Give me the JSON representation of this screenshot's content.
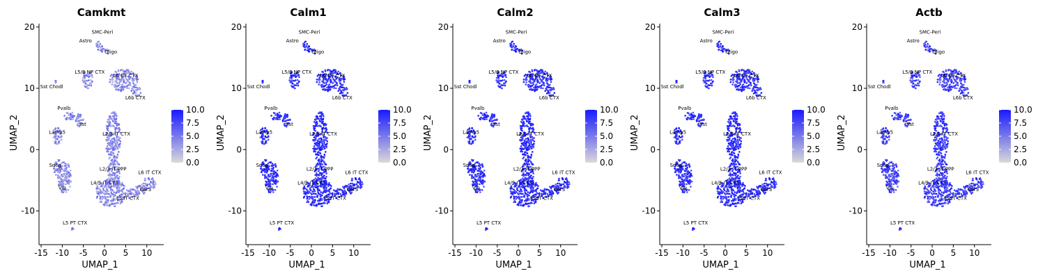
{
  "chart_data": {
    "type": "scatter",
    "description_note": "",
    "shared": {
      "xlabel": "UMAP_1",
      "ylabel": "UMAP_2",
      "xlim": [
        -15.5,
        14
      ],
      "ylim": [
        -15.5,
        21
      ],
      "x_ticks": [
        -15,
        -10,
        -5,
        0,
        5,
        10
      ],
      "x_tick_labels": [
        "-15",
        "-10",
        "-5",
        "0",
        "5",
        "10"
      ],
      "y_ticks": [
        -10,
        0,
        10,
        20
      ],
      "y_tick_labels": [
        "-10",
        "0",
        "10",
        "20"
      ],
      "colorbar": {
        "range": [
          0,
          10
        ],
        "ticks": [
          10,
          7.5,
          5,
          2.5,
          0
        ],
        "tick_labels": [
          "10.0",
          "7.5",
          "5.0",
          "2.5",
          "0.0"
        ],
        "low_color": "#d9d9d9",
        "high_color": "#1a1aff"
      },
      "grid": false,
      "legend_placement": "right"
    },
    "clusters": [
      {
        "name": "SMC-Peri",
        "x": -0.5,
        "y": 16.5,
        "label_x": -0.5,
        "label_y": 18.9,
        "rx": 0.6,
        "ry": 0.7
      },
      {
        "name": "Astro",
        "x": -1.5,
        "y": 17.0,
        "label_x": -4.5,
        "label_y": 17.5,
        "rx": 0.5,
        "ry": 0.9
      },
      {
        "name": "Oligo",
        "x": 0.5,
        "y": 16.0,
        "label_x": 1.5,
        "label_y": 15.7,
        "rx": 0.6,
        "ry": 0.5
      },
      {
        "name": "L5/6 NP CTX",
        "x": -4.0,
        "y": 11.5,
        "label_x": -3.5,
        "label_y": 12.4,
        "rx": 1.2,
        "ry": 1.6
      },
      {
        "name": "L6 CT CTX",
        "x": 4.5,
        "y": 11.3,
        "label_x": 5.0,
        "label_y": 11.8,
        "rx": 3.4,
        "ry": 1.8
      },
      {
        "name": "L6b CTX",
        "x": 7.5,
        "y": 9.5,
        "label_x": 7.3,
        "label_y": 8.2,
        "rx": 1.2,
        "ry": 0.8
      },
      {
        "name": "Sst Chodl",
        "x": -11.5,
        "y": 11.0,
        "label_x": -12.5,
        "label_y": 10.0,
        "rx": 0.25,
        "ry": 0.25
      },
      {
        "name": "Pvalb",
        "x": -8.3,
        "y": 5.5,
        "label_x": -9.6,
        "label_y": 6.5,
        "rx": 1.2,
        "ry": 0.8
      },
      {
        "name": "Sst",
        "x": -6.0,
        "y": 4.8,
        "label_x": -5.2,
        "label_y": 3.9,
        "rx": 1.0,
        "ry": 1.1
      },
      {
        "name": "Lamp5",
        "x": -11.2,
        "y": 2.2,
        "label_x": -11.2,
        "label_y": 2.6,
        "rx": 1.2,
        "ry": 1.4
      },
      {
        "name": "Sncg",
        "x": -11.0,
        "y": -3.0,
        "label_x": -11.7,
        "label_y": -2.8,
        "rx": 1.0,
        "ry": 1.5
      },
      {
        "name": "Vip",
        "x": -9.5,
        "y": -4.5,
        "label_x": -10.0,
        "label_y": -6.5,
        "rx": 1.7,
        "ry": 2.6
      },
      {
        "name": "L2/3 IT CTX",
        "x": 2.0,
        "y": 2.0,
        "label_x": 2.8,
        "label_y": 2.3,
        "rx": 1.8,
        "ry": 4.2
      },
      {
        "name": "L2/3 IT PPP",
        "x": 2.2,
        "y": -3.5,
        "label_x": 2.0,
        "label_y": -3.4,
        "rx": 1.5,
        "ry": 2.0
      },
      {
        "name": "L4/5 IT CTX",
        "x": 1.5,
        "y": -7.0,
        "label_x": 0.0,
        "label_y": -5.7,
        "rx": 3.6,
        "ry": 2.4
      },
      {
        "name": "L6 IT CTX",
        "x": 10.5,
        "y": -5.5,
        "label_x": 10.7,
        "label_y": -4.0,
        "rx": 1.8,
        "ry": 1.0
      },
      {
        "name": "Car3",
        "x": 8.5,
        "y": -6.5,
        "label_x": 9.7,
        "label_y": -6.8,
        "rx": 1.5,
        "ry": 0.8
      },
      {
        "name": "L5 IT CTX",
        "x": 6.5,
        "y": -7.2,
        "label_x": 5.5,
        "label_y": -8.2,
        "rx": 1.8,
        "ry": 0.8
      },
      {
        "name": "L5 PT CTX",
        "x": -7.5,
        "y": -13.0,
        "label_x": -7.0,
        "label_y": -12.2,
        "rx": 0.25,
        "ry": 0.25
      }
    ],
    "panels": [
      {
        "title": "Camkmt",
        "expression_level": 4.0
      },
      {
        "title": "Calm1",
        "expression_level": 9.0
      },
      {
        "title": "Calm2",
        "expression_level": 9.0
      },
      {
        "title": "Calm3",
        "expression_level": 9.0
      },
      {
        "title": "Actb",
        "expression_level": 8.0
      }
    ]
  }
}
